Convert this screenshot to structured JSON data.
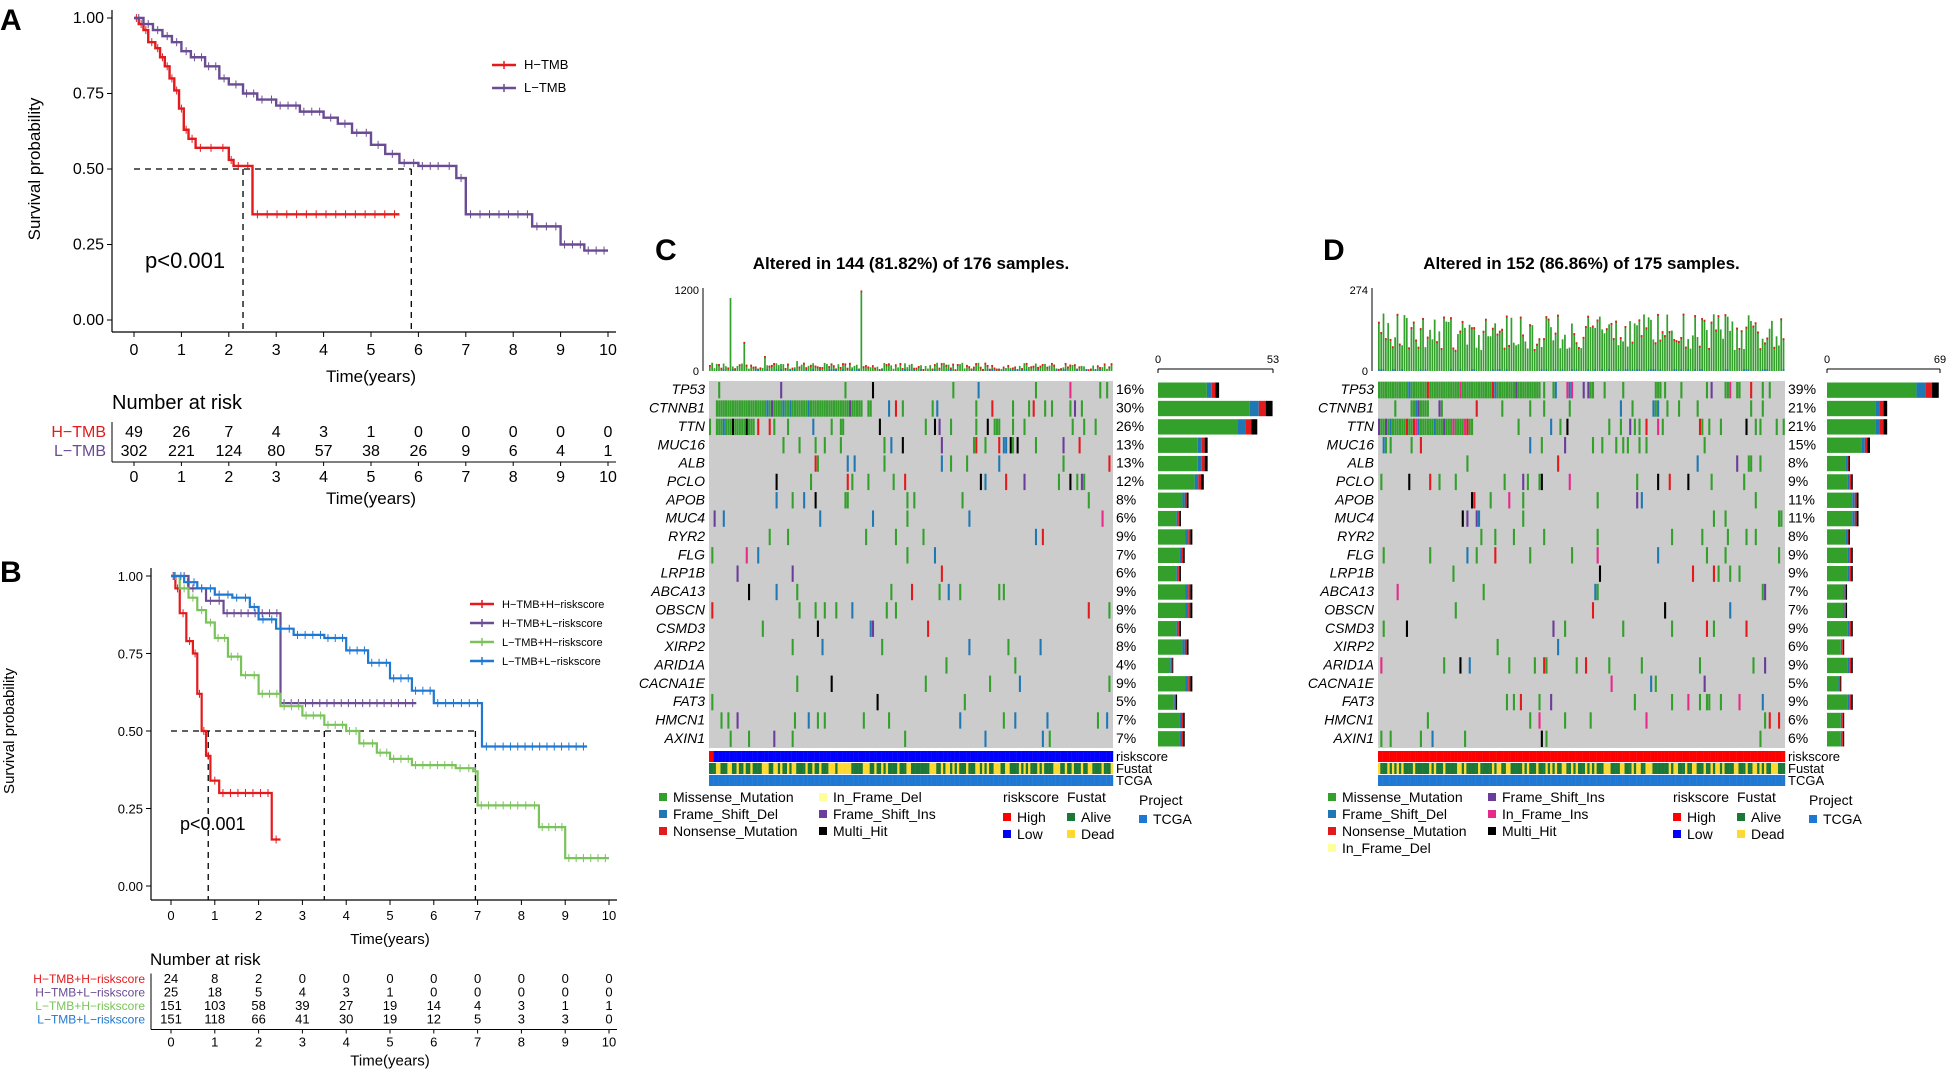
{
  "colors": {
    "h_tmb": "#e41a1c",
    "l_tmb": "#6a4c93",
    "hh": "#e41a1c",
    "hl": "#6a4c93",
    "lh": "#7ac35a",
    "ll": "#1f78d1",
    "missense": "#33a02c",
    "frame_shift_del": "#1f78b4",
    "nonsense": "#e31a1c",
    "in_frame_del": "#ffff99",
    "frame_shift_ins": "#6a3d9a",
    "in_frame_ins": "#e7298a",
    "multi_hit": "#000000",
    "high": "#ff0000",
    "low": "#0000ff",
    "alive": "#1b7837",
    "dead": "#ffd92f",
    "tcga": "#1f78d1",
    "grid_bg": "#cccccc"
  },
  "chart_data": [
    {
      "panel": "A",
      "type": "line",
      "subtype": "kaplan-meier",
      "xlabel": "Time(years)",
      "ylabel": "Survival probability",
      "xlim": [
        0,
        10
      ],
      "ylim": [
        0,
        1
      ],
      "xticks": [
        "0",
        "1",
        "2",
        "3",
        "4",
        "5",
        "6",
        "7",
        "8",
        "9",
        "10"
      ],
      "yticks": [
        "0.00",
        "0.25",
        "0.50",
        "0.75",
        "1.00"
      ],
      "pvalue": "p<0.001",
      "medians": [
        2.3,
        5.85
      ],
      "series": [
        {
          "name": "H−TMB",
          "color": "#e41a1c",
          "x": [
            0,
            0.1,
            0.2,
            0.3,
            0.45,
            0.55,
            0.65,
            0.75,
            0.85,
            0.95,
            1.05,
            1.15,
            1.3,
            1.5,
            1.75,
            2.0,
            2.1,
            2.5,
            5.6
          ],
          "y": [
            1.0,
            0.98,
            0.96,
            0.92,
            0.9,
            0.87,
            0.84,
            0.8,
            0.76,
            0.7,
            0.63,
            0.6,
            0.57,
            0.57,
            0.57,
            0.53,
            0.51,
            0.35,
            0.35
          ]
        },
        {
          "name": "L−TMB",
          "color": "#6a4c93",
          "x": [
            0,
            0.2,
            0.4,
            0.6,
            0.8,
            1.0,
            1.2,
            1.5,
            1.8,
            2.0,
            2.3,
            2.6,
            3.0,
            3.5,
            4.0,
            4.3,
            4.6,
            5.0,
            5.3,
            5.6,
            6.0,
            6.5,
            6.8,
            7.0,
            7.6,
            8.0,
            8.4,
            9.0,
            9.5,
            10.0
          ],
          "y": [
            1.0,
            0.98,
            0.96,
            0.94,
            0.92,
            0.89,
            0.87,
            0.84,
            0.8,
            0.78,
            0.75,
            0.73,
            0.71,
            0.69,
            0.67,
            0.65,
            0.62,
            0.58,
            0.55,
            0.52,
            0.51,
            0.51,
            0.47,
            0.35,
            0.35,
            0.35,
            0.31,
            0.25,
            0.23,
            0.23
          ]
        }
      ],
      "risk_table": {
        "title": "Number at risk",
        "xlabel": "Time(years)",
        "times": [
          "0",
          "1",
          "2",
          "3",
          "4",
          "5",
          "6",
          "7",
          "8",
          "9",
          "10"
        ],
        "rows": [
          {
            "label": "H−TMB",
            "color": "#e41a1c",
            "values": [
              "49",
              "26",
              "7",
              "4",
              "3",
              "1",
              "0",
              "0",
              "0",
              "0",
              "0"
            ]
          },
          {
            "label": "L−TMB",
            "color": "#6a4c93",
            "values": [
              "302",
              "221",
              "124",
              "80",
              "57",
              "38",
              "26",
              "9",
              "6",
              "4",
              "1"
            ]
          }
        ]
      }
    },
    {
      "panel": "B",
      "type": "line",
      "subtype": "kaplan-meier",
      "xlabel": "Time(years)",
      "ylabel": "Survival probability",
      "xlim": [
        0,
        10
      ],
      "ylim": [
        0,
        1
      ],
      "xticks": [
        "0",
        "1",
        "2",
        "3",
        "4",
        "5",
        "6",
        "7",
        "8",
        "9",
        "10"
      ],
      "yticks": [
        "0.00",
        "0.25",
        "0.50",
        "0.75",
        "1.00"
      ],
      "pvalue": "p<0.001",
      "medians": [
        0.85,
        3.5,
        6.95
      ],
      "series": [
        {
          "name": "H−TMB+H−riskscore",
          "color": "#e41a1c",
          "x": [
            0,
            0.1,
            0.2,
            0.35,
            0.5,
            0.6,
            0.7,
            0.8,
            0.9,
            1.1,
            2.3,
            2.5
          ],
          "y": [
            1.0,
            0.96,
            0.88,
            0.79,
            0.75,
            0.62,
            0.5,
            0.42,
            0.34,
            0.3,
            0.15,
            0.15
          ]
        },
        {
          "name": "H−TMB+L−riskscore",
          "color": "#6a4c93",
          "x": [
            0,
            0.4,
            0.8,
            1.2,
            2.0,
            2.5,
            5.6
          ],
          "y": [
            1.0,
            0.96,
            0.92,
            0.88,
            0.88,
            0.59,
            0.59
          ]
        },
        {
          "name": "L−TMB+H−riskscore",
          "color": "#7ac35a",
          "x": [
            0,
            0.2,
            0.4,
            0.6,
            0.8,
            1.0,
            1.3,
            1.6,
            2.0,
            2.5,
            3.0,
            3.5,
            4.0,
            4.3,
            4.7,
            5.0,
            5.5,
            6.5,
            6.9,
            7.0,
            8.0,
            8.4,
            9.0,
            10.0
          ],
          "y": [
            1.0,
            0.96,
            0.93,
            0.89,
            0.85,
            0.8,
            0.74,
            0.68,
            0.62,
            0.58,
            0.55,
            0.52,
            0.5,
            0.46,
            0.43,
            0.41,
            0.39,
            0.38,
            0.37,
            0.26,
            0.26,
            0.19,
            0.09,
            0.09
          ]
        },
        {
          "name": "L−TMB+L−riskscore",
          "color": "#1f78d1",
          "x": [
            0,
            0.3,
            0.6,
            1.0,
            1.4,
            1.8,
            2.0,
            2.4,
            2.8,
            3.5,
            4.0,
            4.5,
            5.0,
            5.5,
            6.0,
            6.9,
            7.1,
            7.5,
            9.5
          ],
          "y": [
            1.0,
            0.98,
            0.96,
            0.94,
            0.93,
            0.9,
            0.86,
            0.83,
            0.81,
            0.8,
            0.76,
            0.72,
            0.67,
            0.63,
            0.59,
            0.59,
            0.45,
            0.45,
            0.45
          ]
        }
      ],
      "risk_table": {
        "title": "Number at risk",
        "xlabel": "Time(years)",
        "times": [
          "0",
          "1",
          "2",
          "3",
          "4",
          "5",
          "6",
          "7",
          "8",
          "9",
          "10"
        ],
        "rows": [
          {
            "label": "H−TMB+H−riskscore",
            "color": "#e41a1c",
            "values": [
              "24",
              "8",
              "2",
              "0",
              "0",
              "0",
              "0",
              "0",
              "0",
              "0",
              "0"
            ]
          },
          {
            "label": "H−TMB+L−riskscore",
            "color": "#6a4c93",
            "values": [
              "25",
              "18",
              "5",
              "4",
              "3",
              "1",
              "0",
              "0",
              "0",
              "0",
              "0"
            ]
          },
          {
            "label": "L−TMB+H−riskscore",
            "color": "#7ac35a",
            "values": [
              "151",
              "103",
              "58",
              "39",
              "27",
              "19",
              "14",
              "4",
              "3",
              "1",
              "1"
            ]
          },
          {
            "label": "L−TMB+L−riskscore",
            "color": "#1f78d1",
            "values": [
              "151",
              "118",
              "66",
              "41",
              "30",
              "19",
              "12",
              "5",
              "3",
              "3",
              "0"
            ]
          }
        ]
      }
    },
    {
      "panel": "C",
      "type": "heatmap",
      "subtype": "oncoplot",
      "title": "Altered in 144 (81.82%) of 176 samples.",
      "tmb_axis": [
        "0",
        "1200"
      ],
      "freq_axis": [
        "0",
        "53"
      ],
      "genes": [
        "TP53",
        "CTNNB1",
        "TTN",
        "MUC16",
        "ALB",
        "PCLO",
        "APOB",
        "MUC4",
        "RYR2",
        "FLG",
        "LRP1B",
        "ABCA13",
        "OBSCN",
        "CSMD3",
        "XIRP2",
        "ARID1A",
        "CACNA1E",
        "FAT3",
        "HMCN1",
        "AXIN1"
      ],
      "percents": [
        "16%",
        "30%",
        "26%",
        "13%",
        "13%",
        "12%",
        "8%",
        "6%",
        "9%",
        "7%",
        "6%",
        "9%",
        "9%",
        "6%",
        "8%",
        "4%",
        "9%",
        "5%",
        "7%",
        "7%"
      ],
      "annotation_tracks": [
        "riskscore",
        "Fustat",
        "TCGA"
      ],
      "legend_mutations": [
        "Missense_Mutation",
        "Frame_Shift_Del",
        "Nonsense_Mutation",
        "In_Frame_Del",
        "Frame_Shift_Ins",
        "Multi_Hit"
      ],
      "legend_riskscore": {
        "title": "riskscore",
        "items": [
          "High",
          "Low"
        ]
      },
      "legend_fustat": {
        "title": "Fustat",
        "items": [
          "Alive",
          "Dead"
        ]
      },
      "legend_project": {
        "title": "Project",
        "items": [
          "TCGA"
        ]
      }
    },
    {
      "panel": "D",
      "type": "heatmap",
      "subtype": "oncoplot",
      "title": "Altered in 152 (86.86%) of 175 samples.",
      "tmb_axis": [
        "0",
        "274"
      ],
      "freq_axis": [
        "0",
        "69"
      ],
      "genes": [
        "TP53",
        "CTNNB1",
        "TTN",
        "MUC16",
        "ALB",
        "PCLO",
        "APOB",
        "MUC4",
        "RYR2",
        "FLG",
        "LRP1B",
        "ABCA13",
        "OBSCN",
        "CSMD3",
        "XIRP2",
        "ARID1A",
        "CACNA1E",
        "FAT3",
        "HMCN1",
        "AXIN1"
      ],
      "percents": [
        "39%",
        "21%",
        "21%",
        "15%",
        "8%",
        "9%",
        "11%",
        "11%",
        "8%",
        "9%",
        "9%",
        "7%",
        "7%",
        "9%",
        "6%",
        "9%",
        "5%",
        "9%",
        "6%",
        "6%"
      ],
      "annotation_tracks": [
        "riskscore",
        "Fustat",
        "TCGA"
      ],
      "legend_mutations": [
        "Missense_Mutation",
        "Frame_Shift_Del",
        "Nonsense_Mutation",
        "In_Frame_Del",
        "Frame_Shift_Ins",
        "In_Frame_Ins",
        "Multi_Hit"
      ],
      "legend_riskscore": {
        "title": "riskscore",
        "items": [
          "High",
          "Low"
        ]
      },
      "legend_fustat": {
        "title": "Fustat",
        "items": [
          "Alive",
          "Dead"
        ]
      },
      "legend_project": {
        "title": "Project",
        "items": [
          "TCGA"
        ]
      }
    }
  ]
}
